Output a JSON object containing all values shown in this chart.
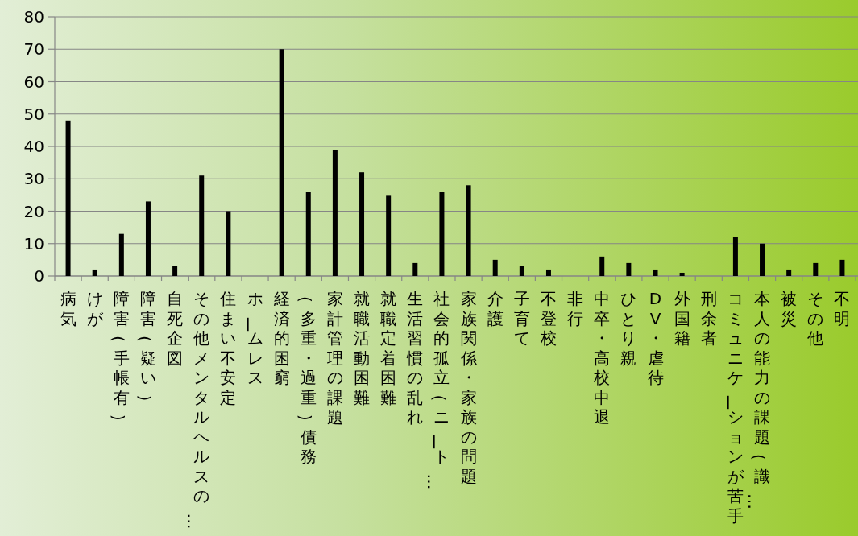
{
  "chart_data": {
    "type": "bar",
    "categories": [
      "病気",
      "けが",
      "障害(手帳有)",
      "障害(疑い)",
      "自死企図",
      "その他メンタルヘルスの…",
      "住まい不安定",
      "ホームレス",
      "経済的困窮",
      "(多重・過重)債務",
      "家計管理の課題",
      "就職活動困難",
      "就職定着困難",
      "生活習慣の乱れ",
      "社会的孤立(ニート…",
      "家族関係・家族の問題",
      "介護",
      "子育て",
      "不登校",
      "非行",
      "中卒・高校中退",
      "ひとり親",
      "DV・虐待",
      "外国籍",
      "刑余者",
      "コミュニケーションが苦手",
      "本人の能力の課題(識…",
      "被災",
      "その他",
      "不明"
    ],
    "values": [
      48,
      2,
      13,
      23,
      3,
      31,
      20,
      0,
      70,
      26,
      39,
      32,
      25,
      4,
      26,
      28,
      5,
      3,
      2,
      0,
      6,
      4,
      2,
      1,
      0,
      12,
      10,
      2,
      4,
      5
    ],
    "color": "#000000",
    "ylim": [
      0,
      80
    ],
    "yticks": [
      0,
      10,
      20,
      30,
      40,
      50,
      60,
      70,
      80
    ],
    "grid": "y"
  }
}
